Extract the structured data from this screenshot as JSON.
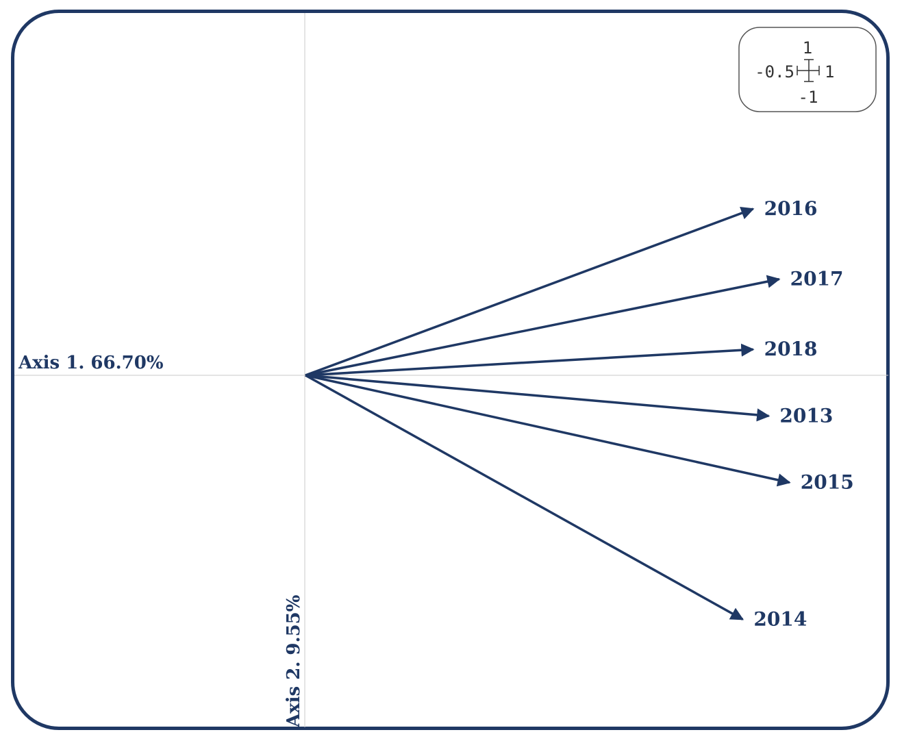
{
  "colors": {
    "ink": "#1f3864",
    "axis_line": "#c8c8c8",
    "scale_box": "#555555"
  },
  "chart_data": {
    "type": "biplot",
    "xlabel": "Axis 1. 66.70%",
    "ylabel": "Axis 2. 9.55%",
    "grid": false,
    "xlim": [
      -0.5,
      1.0
    ],
    "ylim": [
      -1.0,
      1.0
    ],
    "series": [
      {
        "name": "2016",
        "x": 0.86,
        "y": 0.45
      },
      {
        "name": "2017",
        "x": 0.91,
        "y": 0.26
      },
      {
        "name": "2018",
        "x": 0.86,
        "y": 0.07
      },
      {
        "name": "2013",
        "x": 0.89,
        "y": -0.11
      },
      {
        "name": "2015",
        "x": 0.93,
        "y": -0.29
      },
      {
        "name": "2014",
        "x": 0.84,
        "y": -0.66
      }
    ],
    "scale_box": {
      "top": "1",
      "left": "-0.5",
      "right": "1",
      "bottom": "-1"
    }
  }
}
